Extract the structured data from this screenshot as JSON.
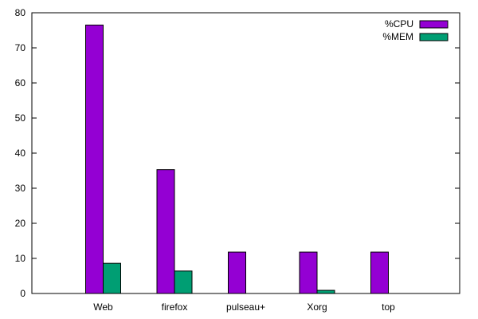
{
  "chart_data": {
    "type": "bar",
    "categories": [
      "Web",
      "firefox",
      "pulseau+",
      "Xorg",
      "top"
    ],
    "series": [
      {
        "name": "%CPU",
        "values": [
          76.5,
          35.3,
          11.8,
          11.8,
          11.8
        ],
        "color": "#9400d3"
      },
      {
        "name": "%MEM",
        "values": [
          8.6,
          6.4,
          0,
          0.9,
          0
        ],
        "color": "#009e73"
      }
    ],
    "ylim": [
      0,
      80
    ],
    "yticks": [
      "0",
      "10",
      "20",
      "30",
      "40",
      "50",
      "60",
      "70",
      "80"
    ],
    "legend_position": "top-right",
    "grid": false
  }
}
